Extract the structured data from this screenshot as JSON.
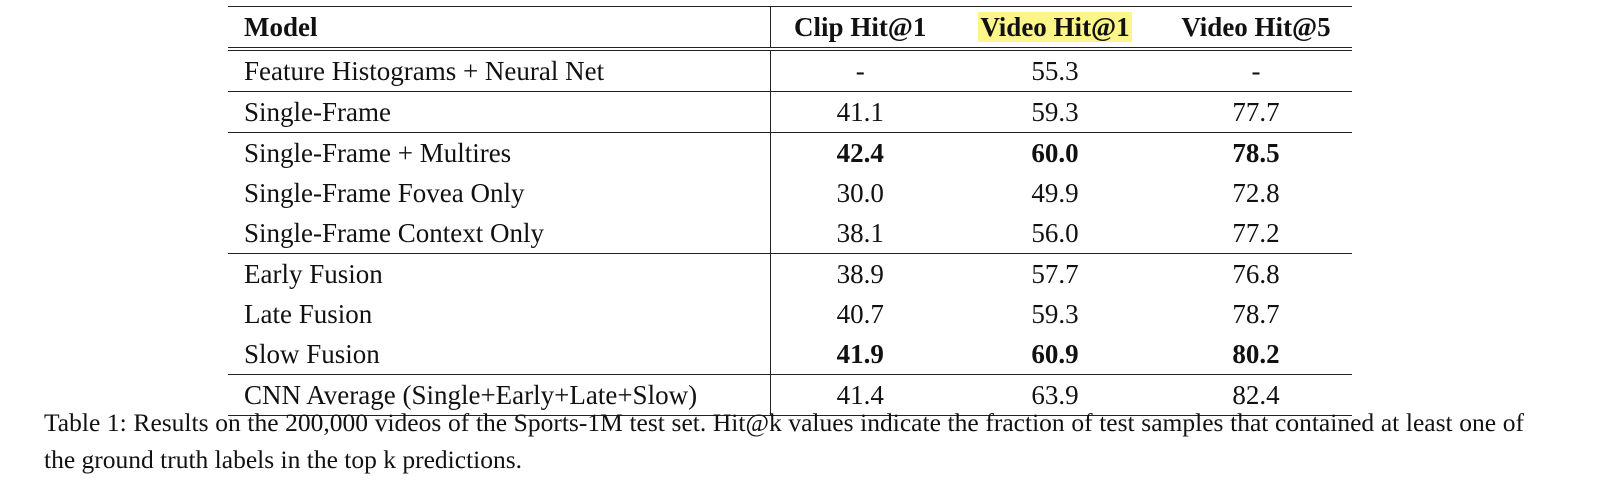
{
  "table": {
    "headers": {
      "model": "Model",
      "clip_hit1": "Clip Hit@1",
      "video_hit1": "Video Hit@1",
      "video_hit5": "Video Hit@5"
    },
    "highlight_color": "#fbf58a",
    "rows": [
      {
        "model": "Feature Histograms + Neural Net",
        "clip_hit1": "-",
        "video_hit1": "55.3",
        "video_hit5": "-"
      },
      {
        "model": "Single-Frame",
        "clip_hit1": "41.1",
        "video_hit1": "59.3",
        "video_hit5": "77.7"
      },
      {
        "model": "Single-Frame + Multires",
        "clip_hit1": "42.4",
        "video_hit1": "60.0",
        "video_hit5": "78.5"
      },
      {
        "model": "Single-Frame Fovea Only",
        "clip_hit1": "30.0",
        "video_hit1": "49.9",
        "video_hit5": "72.8"
      },
      {
        "model": "Single-Frame Context Only",
        "clip_hit1": "38.1",
        "video_hit1": "56.0",
        "video_hit5": "77.2"
      },
      {
        "model": "Early Fusion",
        "clip_hit1": "38.9",
        "video_hit1": "57.7",
        "video_hit5": "76.8"
      },
      {
        "model": "Late Fusion",
        "clip_hit1": "40.7",
        "video_hit1": "59.3",
        "video_hit5": "78.7"
      },
      {
        "model": "Slow Fusion",
        "clip_hit1": "41.9",
        "video_hit1": "60.9",
        "video_hit5": "80.2"
      },
      {
        "model": "CNN Average (Single+Early+Late+Slow)",
        "clip_hit1": "41.4",
        "video_hit1": "63.9",
        "video_hit5": "82.4"
      }
    ]
  },
  "caption": "Table 1: Results on the 200,000 videos of the Sports-1M test set.  Hit@k values indicate the fraction of test samples that contained at least one of the ground truth labels in the top k predictions."
}
